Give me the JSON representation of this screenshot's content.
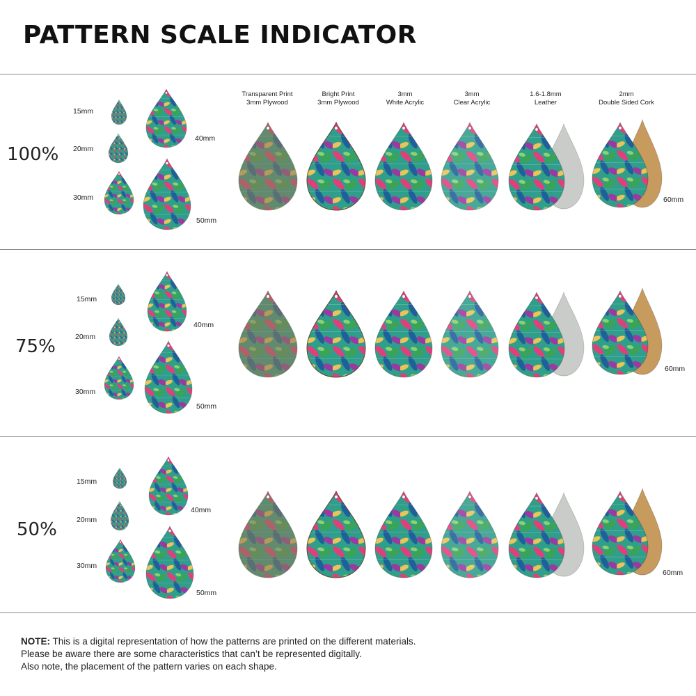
{
  "title": "PATTERN SCALE INDICATOR",
  "materials": [
    {
      "line1": "Transparent Print",
      "line2": "3mm Plywood"
    },
    {
      "line1": "Bright Print",
      "line2": "3mm Plywood"
    },
    {
      "line1": "3mm",
      "line2": "White Acrylic"
    },
    {
      "line1": "3mm",
      "line2": "Clear Acrylic"
    },
    {
      "line1": "1.6-1.8mm",
      "line2": "Leather"
    },
    {
      "line1": "2mm",
      "line2": "Double Sided Cork"
    }
  ],
  "sections": [
    {
      "scale": "100%",
      "sizes": {
        "s15": "15mm",
        "s20": "20mm",
        "s30": "30mm",
        "s40": "40mm",
        "s50": "50mm",
        "s60": "60mm"
      }
    },
    {
      "scale": "75%",
      "sizes": {
        "s15": "15mm",
        "s20": "20mm",
        "s30": "30mm",
        "s40": "40mm",
        "s50": "50mm",
        "s60": "60mm"
      }
    },
    {
      "scale": "50%",
      "sizes": {
        "s15": "15mm",
        "s20": "20mm",
        "s30": "30mm",
        "s40": "40mm",
        "s50": "50mm",
        "s60": "60mm"
      }
    }
  ],
  "note": {
    "label": "NOTE:",
    "line1": " This is a digital representation of how the patterns are printed on the different materials.",
    "line2": "Please be aware there are some characteristics that can’t be represented digitally.",
    "line3": "Also note, the placement of the pattern varies on each shape."
  },
  "colors": {
    "leaf_teal": "#1f8a8a",
    "leaf_green": "#3aa35a",
    "leaf_pink": "#e0407a",
    "leaf_purple": "#9a3aa0",
    "leaf_yellow": "#e8c45a",
    "plywood": "#8a7a5a",
    "leather": "#c9ccc8",
    "cork": "#c79a5e"
  }
}
